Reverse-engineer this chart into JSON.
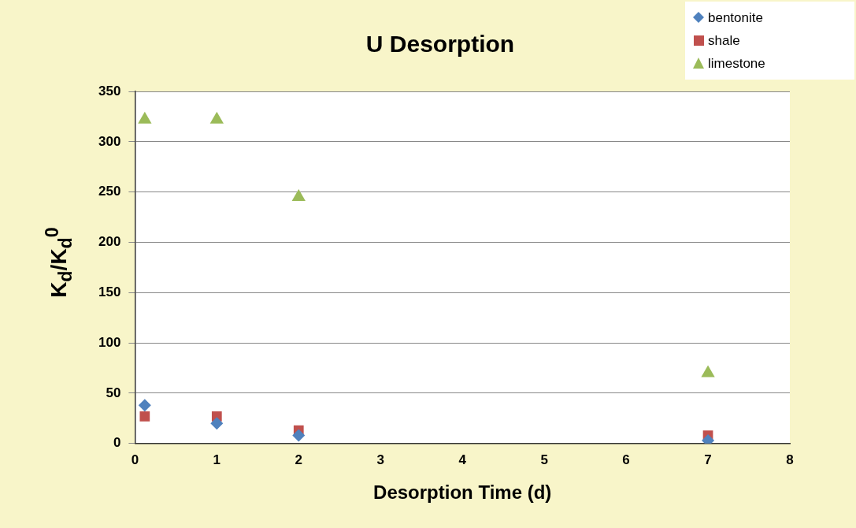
{
  "chart_data": {
    "type": "scatter",
    "title": "U Desorption",
    "xlabel": "Desorption Time (d)",
    "ylabel": "K$_{d}$/K$_{d}$$^{0}$",
    "xlim": [
      0,
      8
    ],
    "xticks": [
      0,
      1,
      2,
      3,
      4,
      5,
      6,
      7,
      8
    ],
    "ylim": [
      0,
      350
    ],
    "yticks": [
      0,
      50,
      100,
      150,
      200,
      250,
      300,
      350
    ],
    "grid": "y",
    "legend": "top right",
    "series": [
      {
        "name": "bentonite",
        "color": "#4f81bd",
        "marker": "diamond",
        "x": [
          0.12,
          1,
          2,
          7
        ],
        "values": [
          38,
          20,
          8,
          3
        ]
      },
      {
        "name": "shale",
        "color": "#c0504d",
        "marker": "square",
        "x": [
          0.12,
          1,
          2,
          7
        ],
        "values": [
          27,
          27,
          13,
          8
        ]
      },
      {
        "name": "limestone",
        "color": "#9bbb59",
        "marker": "triangle",
        "x": [
          0.12,
          1,
          2,
          7
        ],
        "values": [
          322,
          322,
          245,
          70
        ]
      }
    ]
  }
}
